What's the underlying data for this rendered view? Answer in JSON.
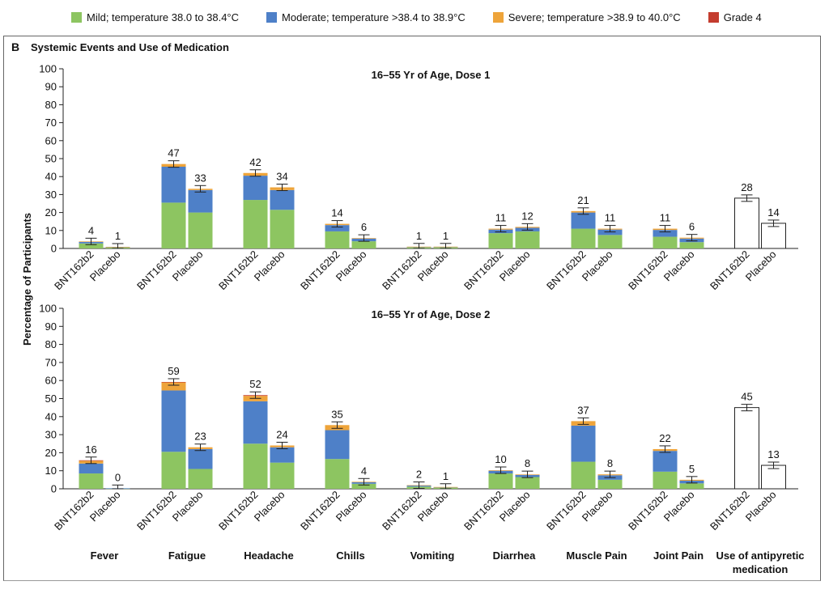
{
  "legend": [
    {
      "label": "Mild; temperature 38.0 to 38.4°C",
      "color": "#8dc561"
    },
    {
      "label": "Moderate; temperature >38.4 to 38.9°C",
      "color": "#4e80c8"
    },
    {
      "label": "Severe; temperature >38.9 to 40.0°C",
      "color": "#eea43a"
    },
    {
      "label": "Grade 4",
      "color": "#c43c2e"
    }
  ],
  "panel": {
    "label": "B",
    "title": "Systemic Events and Use of Medication"
  },
  "y_axis_label": "Percentage of Participants",
  "groups": [
    "BNT162b2",
    "Placebo"
  ],
  "categories": [
    "Fever",
    "Fatigue",
    "Headache",
    "Chills",
    "Vomiting",
    "Diarrhea",
    "Muscle Pain",
    "Joint Pain",
    "Use of antipyretic medication"
  ],
  "chart_data": [
    {
      "type": "bar",
      "title": "16–55 Yr of Age, Dose 1",
      "ylim": [
        0,
        100
      ],
      "yticks": [
        0,
        10,
        20,
        30,
        40,
        50,
        60,
        70,
        80,
        90,
        100
      ],
      "categories": [
        "Fever",
        "Fatigue",
        "Headache",
        "Chills",
        "Vomiting",
        "Diarrhea",
        "Muscle Pain",
        "Joint Pain",
        "Use of antipyretic medication"
      ],
      "series_names": [
        "BNT162b2",
        "Placebo"
      ],
      "bars": [
        [
          {
            "total": 4,
            "segments": [
              2.8,
              0.8,
              0.3,
              0
            ]
          },
          {
            "total": 1,
            "segments": [
              0.5,
              0.3,
              0.1,
              0
            ]
          }
        ],
        [
          {
            "total": 47,
            "segments": [
              25.5,
              20.0,
              1.5,
              0
            ]
          },
          {
            "total": 33,
            "segments": [
              20.0,
              12.5,
              0.7,
              0
            ]
          }
        ],
        [
          {
            "total": 42,
            "segments": [
              27.0,
              13.5,
              1.5,
              0
            ]
          },
          {
            "total": 34,
            "segments": [
              21.5,
              11.0,
              1.5,
              0
            ]
          }
        ],
        [
          {
            "total": 14,
            "segments": [
              9.5,
              3.5,
              0.7,
              0
            ]
          },
          {
            "total": 6,
            "segments": [
              4.0,
              1.5,
              0.3,
              0
            ]
          }
        ],
        [
          {
            "total": 1,
            "segments": [
              0.6,
              0.3,
              0.1,
              0
            ]
          },
          {
            "total": 1,
            "segments": [
              0.6,
              0.3,
              0.1,
              0
            ]
          }
        ],
        [
          {
            "total": 11,
            "segments": [
              8.5,
              2.0,
              0.5,
              0
            ]
          },
          {
            "total": 12,
            "segments": [
              9.5,
              2.0,
              0.5,
              0
            ]
          }
        ],
        [
          {
            "total": 21,
            "segments": [
              11.0,
              9.0,
              0.8,
              0
            ]
          },
          {
            "total": 11,
            "segments": [
              7.5,
              3.0,
              0.5,
              0
            ]
          }
        ],
        [
          {
            "total": 11,
            "segments": [
              6.5,
              3.8,
              0.7,
              0
            ]
          },
          {
            "total": 6,
            "segments": [
              3.5,
              2.0,
              0.5,
              0
            ]
          }
        ],
        [
          {
            "total": 28,
            "segments": [],
            "outline": true
          },
          {
            "total": 14,
            "segments": [],
            "outline": true
          }
        ]
      ]
    },
    {
      "type": "bar",
      "title": "16–55 Yr of Age, Dose 2",
      "ylim": [
        0,
        100
      ],
      "yticks": [
        0,
        10,
        20,
        30,
        40,
        50,
        60,
        70,
        80,
        90,
        100
      ],
      "categories": [
        "Fever",
        "Fatigue",
        "Headache",
        "Chills",
        "Vomiting",
        "Diarrhea",
        "Muscle Pain",
        "Joint Pain",
        "Use of antipyretic medication"
      ],
      "series_names": [
        "BNT162b2",
        "Placebo"
      ],
      "bars": [
        [
          {
            "total": 16,
            "segments": [
              8.5,
              5.5,
              1.5,
              0.3
            ]
          },
          {
            "total": 0,
            "segments": [
              0.2,
              0.1,
              0,
              0
            ]
          }
        ],
        [
          {
            "total": 59,
            "segments": [
              20.5,
              34.0,
              4.5,
              0.2
            ]
          },
          {
            "total": 23,
            "segments": [
              11.0,
              11.0,
              1.0,
              0
            ]
          }
        ],
        [
          {
            "total": 52,
            "segments": [
              25.0,
              23.5,
              3.0,
              0.4
            ]
          },
          {
            "total": 24,
            "segments": [
              14.5,
              8.5,
              1.0,
              0
            ]
          }
        ],
        [
          {
            "total": 35,
            "segments": [
              16.5,
              16.0,
              2.8,
              0
            ]
          },
          {
            "total": 4,
            "segments": [
              2.8,
              0.8,
              0.3,
              0
            ]
          }
        ],
        [
          {
            "total": 2,
            "segments": [
              1.2,
              0.6,
              0.2,
              0
            ]
          },
          {
            "total": 1,
            "segments": [
              0.6,
              0.3,
              0.1,
              0
            ]
          }
        ],
        [
          {
            "total": 10,
            "segments": [
              8.5,
              1.5,
              0.3,
              0
            ]
          },
          {
            "total": 8,
            "segments": [
              6.5,
              1.2,
              0.3,
              0
            ]
          }
        ],
        [
          {
            "total": 37,
            "segments": [
              15.0,
              20.0,
              2.5,
              0
            ]
          },
          {
            "total": 8,
            "segments": [
              5.0,
              2.5,
              0.5,
              0
            ]
          }
        ],
        [
          {
            "total": 22,
            "segments": [
              9.5,
              11.5,
              1.0,
              0
            ]
          },
          {
            "total": 5,
            "segments": [
              3.0,
              1.5,
              0.5,
              0
            ]
          }
        ],
        [
          {
            "total": 45,
            "segments": [],
            "outline": true
          },
          {
            "total": 13,
            "segments": [],
            "outline": true
          }
        ]
      ]
    }
  ]
}
